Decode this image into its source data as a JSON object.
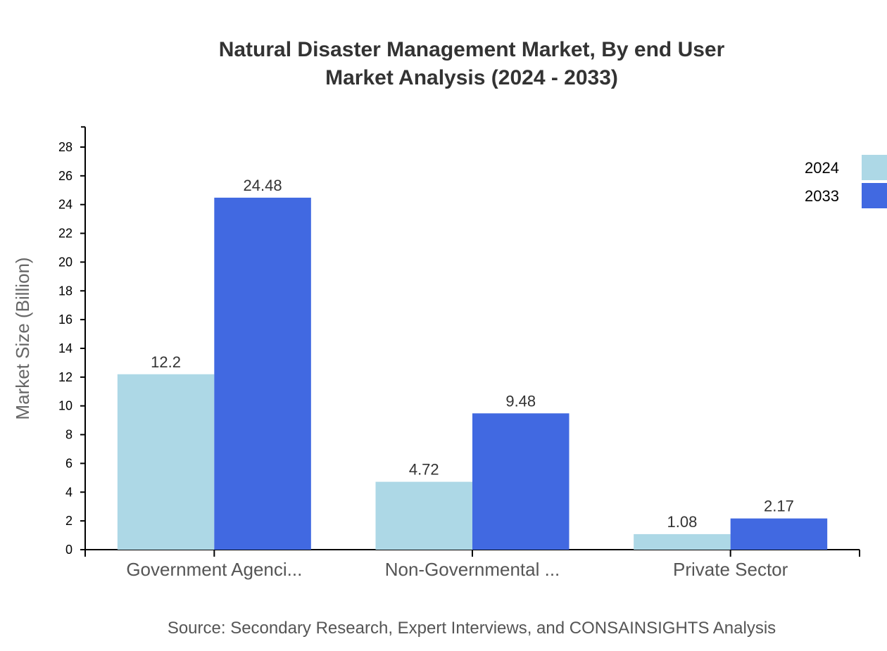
{
  "chart_data": {
    "type": "bar",
    "title": [
      "Natural Disaster Management Market, By end User",
      "Market Analysis (2024 - 2033)"
    ],
    "xlabel": "",
    "ylabel": "Market Size (Billion)",
    "categories": [
      "Government Agenci...",
      "Non-Governmental ...",
      "Private Sector"
    ],
    "series": [
      {
        "name": "2024",
        "color": "#add8e6",
        "values": [
          12.2,
          4.72,
          1.08
        ]
      },
      {
        "name": "2033",
        "color": "#4169e1",
        "values": [
          24.48,
          9.48,
          2.17
        ]
      }
    ],
    "ylim": [
      0,
      29.4
    ],
    "yticks": [
      0,
      2,
      4,
      6,
      8,
      10,
      12,
      14,
      16,
      18,
      20,
      22,
      24,
      26,
      28
    ],
    "grid": false,
    "legend": "top-right",
    "source": "Source: Secondary Research, Expert Interviews, and CONSAINSIGHTS Analysis"
  }
}
